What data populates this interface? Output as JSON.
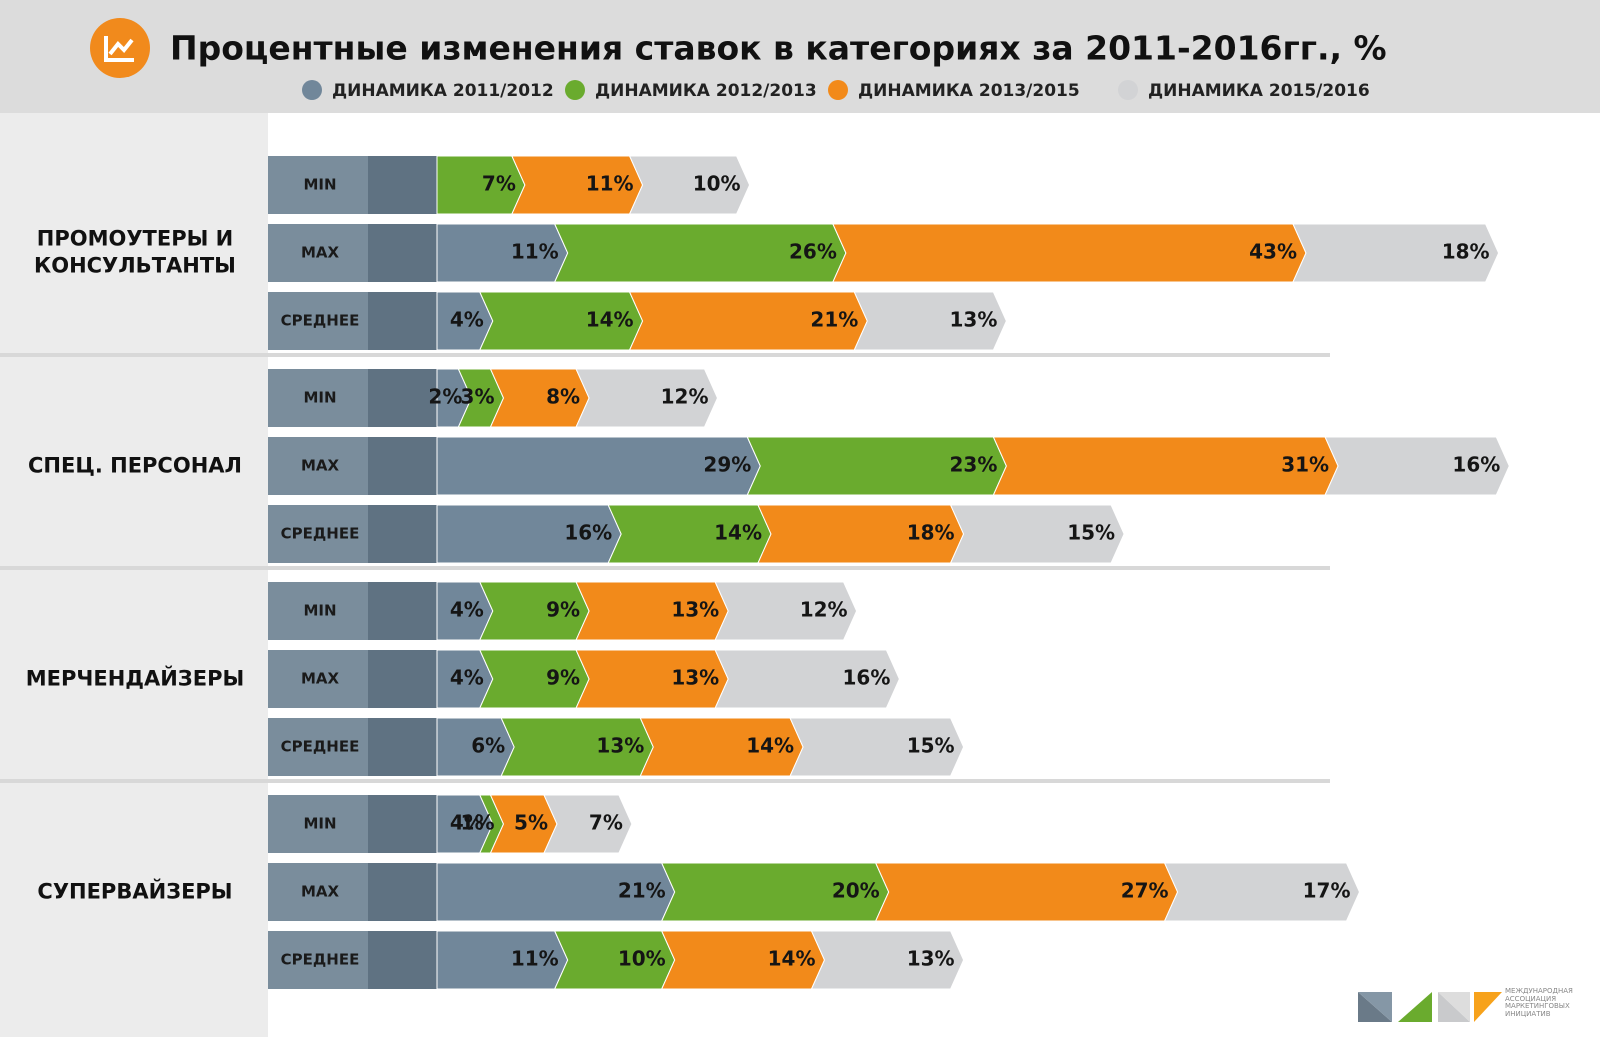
{
  "chart_data": {
    "type": "bar",
    "title": "Процентные изменения ставок в категориях за 2011-2016гг., %",
    "groups": [
      "ПРОМОУТЕРЫ И КОНСУЛЬТАНТЫ",
      "СПЕЦ. ПЕРСОНАЛ",
      "МЕРЧЕНДАЙЗЕРЫ",
      "СУПЕРВАЙЗЕРЫ"
    ],
    "categories": [
      "MIN",
      "MAX",
      "СРЕДНЕЕ",
      "MIN",
      "MAX",
      "СРЕДНЕЕ",
      "MIN",
      "MAX",
      "СРЕДНЕЕ",
      "MIN",
      "MAX",
      "СРЕДНЕЕ"
    ],
    "series": [
      {
        "name": "ДИНАМИКА 2011/2012",
        "color": "#71879a",
        "values": [
          null,
          11,
          4,
          2,
          29,
          16,
          4,
          4,
          6,
          4,
          21,
          11
        ],
        "value_labels": [
          null,
          "11%",
          "4%",
          "2%",
          "29%",
          "16%",
          "4%",
          "4%",
          "6%",
          "4%",
          "21%",
          "11%"
        ]
      },
      {
        "name": "ДИНАМИКА 2012/2013",
        "color": "#6aab2e",
        "values": [
          7,
          26,
          14,
          3,
          23,
          14,
          9,
          9,
          13,
          1,
          20,
          10
        ],
        "value_labels": [
          "7%",
          "26%",
          "14%",
          "3%",
          "23%",
          "14%",
          "9%",
          "9%",
          "13%",
          "1%",
          "20%",
          "10%"
        ]
      },
      {
        "name": "ДИНАМИКА 2013/2015",
        "color": "#f28a1a",
        "values": [
          11,
          43,
          21,
          8,
          31,
          18,
          13,
          13,
          14,
          5,
          27,
          14
        ],
        "value_labels": [
          "11%",
          "43%",
          "21%",
          "8%",
          "31%",
          "18%",
          "13%",
          "13%",
          "14%",
          "5%",
          "27%",
          "14%"
        ]
      },
      {
        "name": "ДИНАМИКА 2015/2016",
        "color": "#d2d3d5",
        "values": [
          10,
          18,
          13,
          12,
          16,
          15,
          12,
          16,
          15,
          7,
          17,
          13
        ],
        "value_labels": [
          "10%",
          "18%",
          "13%",
          "12%",
          "16%",
          "15%",
          "12%",
          "16%",
          "15%",
          "7%",
          "17%",
          "13%"
        ]
      }
    ]
  },
  "logo": {
    "text": "МЕЖДУНАРОДНАЯ АССОЦИАЦИЯ МАРКЕТИНГОВЫХ ИНИЦИАТИВ"
  }
}
